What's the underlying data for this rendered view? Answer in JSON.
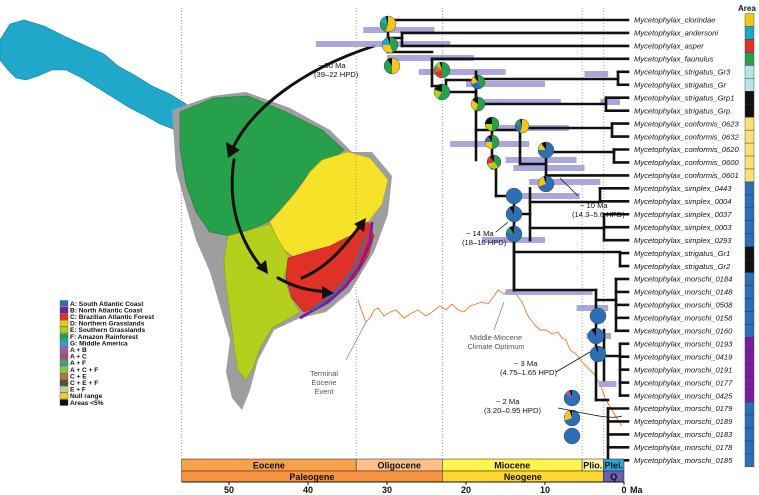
{
  "area_header": "Area",
  "taxa": [
    {
      "name": "Mycetophylax_clorindae",
      "area_color": "#f5c51e"
    },
    {
      "name": "Mycetophylax_andersoni",
      "area_color": "#1fa8c9"
    },
    {
      "name": "Mycetophylax_asper",
      "area_color": "#e03127"
    },
    {
      "name": "Mycetophylax_faunulus",
      "area_color": "#27a04c"
    },
    {
      "name": "Mycetophylax_strigatus_Gr3",
      "area_color": "#b9e3ea"
    },
    {
      "name": "Mycetophylax_strigatus_Gr",
      "area_color": "#b9e3ea"
    },
    {
      "name": "Mycetophylax_strigatus_Grp1",
      "area_color": "#111111"
    },
    {
      "name": "Mycetophylax_strigatus_Grp",
      "area_color": "#111111"
    },
    {
      "name": "Mycetophylax_conformis_0623",
      "area_color": "#f7e27a"
    },
    {
      "name": "Mycetophylax_conformis_0632",
      "area_color": "#f7e27a"
    },
    {
      "name": "Mycetophylax_conformis_0620",
      "area_color": "#f7e27a"
    },
    {
      "name": "Mycetophylax_conformis_0600",
      "area_color": "#f7e27a"
    },
    {
      "name": "Mycetophylax_conformis_0601",
      "area_color": "#f7e27a"
    },
    {
      "name": "Mycetophylax_simplex_0443",
      "area_color": "#2d6fb5"
    },
    {
      "name": "Mycetophylax_simplex_0004",
      "area_color": "#2d6fb5"
    },
    {
      "name": "Mycetophylax_simplex_0037",
      "area_color": "#2d6fb5"
    },
    {
      "name": "Mycetophylax_simplex_0003",
      "area_color": "#2d6fb5"
    },
    {
      "name": "Mycetophylax_simplex_0293",
      "area_color": "#2d6fb5"
    },
    {
      "name": "Mycetophylax_strigatus_Gr1",
      "area_color": "#111111"
    },
    {
      "name": "Mycetophylax_strigatus_Gr2",
      "area_color": "#111111"
    },
    {
      "name": "Mycetophylax_morschi_0184",
      "area_color": "#2d6fb5"
    },
    {
      "name": "Mycetophylax_morschi_0148",
      "area_color": "#2d6fb5"
    },
    {
      "name": "Mycetophylax_morschi_0508",
      "area_color": "#2d6fb5"
    },
    {
      "name": "Mycetophylax_morschi_0158",
      "area_color": "#2d6fb5"
    },
    {
      "name": "Mycetophylax_morschi_0160",
      "area_color": "#2d6fb5"
    },
    {
      "name": "Mycetophylax_morschi_0193",
      "area_color": "#7a1d9e"
    },
    {
      "name": "Mycetophylax_morschi_0419",
      "area_color": "#7a1d9e"
    },
    {
      "name": "Mycetophylax_morschi_0191",
      "area_color": "#7a1d9e"
    },
    {
      "name": "Mycetophylax_morschi_0177",
      "area_color": "#7a1d9e"
    },
    {
      "name": "Mycetophylax_morschi_0425",
      "area_color": "#7a1d9e"
    },
    {
      "name": "Mycetophylax_morschi_0179",
      "area_color": "#2d6fb5"
    },
    {
      "name": "Mycetophylax_morschi_0189",
      "area_color": "#2d6fb5"
    },
    {
      "name": "Mycetophylax_morschi_0183",
      "area_color": "#2d6fb5"
    },
    {
      "name": "Mycetophylax_morschi_0178",
      "area_color": "#2d6fb5"
    },
    {
      "name": "Mycetophylax_morschi_0185",
      "area_color": "#2d6fb5"
    }
  ],
  "legend": [
    {
      "label": "A: South Atlantic Coast",
      "color": "#2d6fb5"
    },
    {
      "label": "B: North Atlantic Coast",
      "color": "#7a1d9e"
    },
    {
      "label": "C: Brazilian Atlantic Forest",
      "color": "#e03127"
    },
    {
      "label": "D: Northern Grasslands",
      "color": "#f5c51e"
    },
    {
      "label": "E: Southern Grasslands",
      "color": "#b5cf1d"
    },
    {
      "label": "F: Amazon Rainforest",
      "color": "#27a04c"
    },
    {
      "label": "G: Middle America",
      "color": "#1fa8c9"
    },
    {
      "label": "A + B",
      "color": "#a05aa8"
    },
    {
      "label": "A + C",
      "color": "#b04a6a"
    },
    {
      "label": "A + F",
      "color": "#4a9a8c"
    },
    {
      "label": "A + C + F",
      "color": "#8ac43a"
    },
    {
      "label": "C + E",
      "color": "#a87b45"
    },
    {
      "label": "C + E + F",
      "color": "#6a4a2a"
    },
    {
      "label": "E + F",
      "color": "#b5d6a0"
    },
    {
      "label": "Null range",
      "color": "#f0d020"
    },
    {
      "label": "Areas <5%",
      "color": "#111111"
    }
  ],
  "annotations": {
    "a30_line1": "~ 30 Ma",
    "a30_line2": "(39–22 HPD)",
    "a14_line1": "~ 14 Ma",
    "a14_line2": "(18–10 HPD)",
    "a10_line1": "~ 10 Ma",
    "a10_line2": "(14.3–5.6 HPD)",
    "a3_line1": "~ 3 Ma",
    "a3_line2": "(4.75–1.65 HPD)",
    "a2_line1": "~ 2 Ma",
    "a2_line2": "(3.20–0.95 HPD)",
    "eocene_event_line1": "Terminal",
    "eocene_event_line2": "Eocene",
    "eocene_event_line3": "Event",
    "miocene_opt_line1": "Middle-Miocene",
    "miocene_opt_line2": "Climate Optimum"
  },
  "timescale": {
    "epochs": [
      {
        "label": "Eocene",
        "start": 56,
        "end": 33.9,
        "color": "#f7a14a"
      },
      {
        "label": "Oligocene",
        "start": 33.9,
        "end": 23,
        "color": "#fbc08a"
      },
      {
        "label": "Miocene",
        "start": 23,
        "end": 5.3,
        "color": "#fff34d"
      },
      {
        "label": "Plio.",
        "start": 5.3,
        "end": 2.6,
        "color": "#fff8a6"
      },
      {
        "label": "Plei.",
        "start": 2.6,
        "end": 0,
        "color": "#2aa7d6"
      }
    ],
    "periods": [
      {
        "label": "Paleogene",
        "start": 56,
        "end": 23,
        "color": "#f79341"
      },
      {
        "label": "Neogene",
        "start": 23,
        "end": 2.6,
        "color": "#ffd72e"
      },
      {
        "label": "Q",
        "start": 2.6,
        "end": 0,
        "color": "#6b5fb0"
      }
    ],
    "ticks": [
      50,
      40,
      30,
      20,
      10,
      0
    ],
    "unit": "Ma"
  }
}
